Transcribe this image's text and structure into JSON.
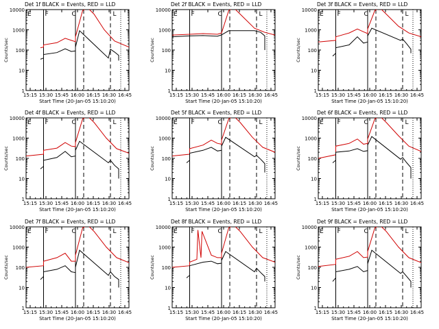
{
  "chart_data": [
    {
      "type": "line",
      "title": "Det 1f BLACK = Events, RED = LLD",
      "xlabel": "Start Time (20-Jan-05 15:10:20)",
      "ylabel": "Counts/sec",
      "yscale": "log",
      "ylim": [
        1,
        10000
      ],
      "y_ticks": [
        "1",
        "10",
        "100",
        "1000",
        "10000"
      ],
      "x_ticks": [
        "15:15",
        "15:30",
        "15:45",
        "16:00",
        "16:15",
        "16:30",
        "16:45"
      ],
      "markers": {
        "E": 0.0,
        "F": 0.17,
        "C": 0.43,
        "L": 0.83
      },
      "solid_lines": [
        0.17,
        0.48
      ],
      "dashed_lines": [
        0.56,
        0.82
      ],
      "dotted_lines": [
        0.92
      ],
      "series": [
        {
          "name": "RED = LLD",
          "color": "#d00000",
          "x": [
            0.14,
            0.17,
            0.17,
            0.3,
            0.38,
            0.44,
            0.48,
            0.48,
            0.55,
            0.6,
            0.66,
            0.76,
            0.86,
            0.96,
            1.0
          ],
          "y": [
            130,
            140,
            180,
            230,
            380,
            300,
            260,
            450,
            9000,
            12000,
            6000,
            1000,
            280,
            170,
            140
          ]
        },
        {
          "name": "BLACK = Events",
          "color": "#000000",
          "x": [
            0.14,
            0.17,
            0.17,
            0.3,
            0.38,
            0.44,
            0.48,
            0.48,
            0.52,
            0.8,
            0.82,
            0.86,
            0.9,
            0.9
          ],
          "y": [
            35,
            40,
            60,
            75,
            115,
            85,
            90,
            140,
            900,
            40,
            110,
            80,
            55,
            30
          ]
        }
      ]
    },
    {
      "type": "line",
      "title": "Det 2f BLACK = Events, RED = LLD",
      "xlabel": "Start Time (20-Jan-05 15:10:20)",
      "ylabel": "Counts/sec",
      "yscale": "log",
      "ylim": [
        1,
        10000
      ],
      "y_ticks": [
        "1",
        "10",
        "100",
        "1000",
        "10000"
      ],
      "x_ticks": [
        "15:15",
        "15:30",
        "15:45",
        "16:00",
        "16:15",
        "16:30",
        "16:45"
      ],
      "markers": {
        "E": 0.0,
        "F": 0.17,
        "C": 0.43,
        "L": 0.83
      },
      "solid_lines": [
        0.17,
        0.48
      ],
      "dashed_lines": [
        0.56,
        0.82
      ],
      "dotted_lines": [
        0.92
      ],
      "series": [
        {
          "name": "RED = LLD",
          "color": "#d00000",
          "x": [
            0.0,
            0.17,
            0.3,
            0.44,
            0.48,
            0.55,
            0.6,
            0.66,
            0.8,
            0.9,
            1.0
          ],
          "y": [
            550,
            600,
            650,
            600,
            700,
            9000,
            12000,
            6000,
            1200,
            750,
            550
          ]
        },
        {
          "name": "BLACK = Events",
          "color": "#000000",
          "x": [
            0.0,
            0.17,
            0.3,
            0.44,
            0.48,
            0.55,
            0.8,
            0.86,
            0.9,
            0.9
          ],
          "y": [
            450,
            500,
            520,
            480,
            560,
            900,
            900,
            750,
            500,
            100
          ]
        }
      ]
    },
    {
      "type": "line",
      "title": "Det 3f BLACK = Events, RED = LLD",
      "xlabel": "Start Time (20-Jan-05 15:10:20)",
      "ylabel": "Counts/sec",
      "yscale": "log",
      "ylim": [
        1,
        10000
      ],
      "y_ticks": [
        "1",
        "10",
        "100",
        "1000",
        "10000"
      ],
      "x_ticks": [
        "15:15",
        "15:30",
        "15:45",
        "16:00",
        "16:15",
        "16:30",
        "16:45"
      ],
      "markers": {
        "E": 0.0,
        "F": 0.17,
        "C": 0.43,
        "L": 0.83
      },
      "solid_lines": [
        0.17,
        0.48
      ],
      "dashed_lines": [
        0.56,
        0.82
      ],
      "dotted_lines": [
        0.92
      ],
      "series": [
        {
          "name": "RED = LLD",
          "color": "#d00000",
          "x": [
            0.0,
            0.17,
            0.17,
            0.3,
            0.38,
            0.44,
            0.48,
            0.48,
            0.55,
            0.6,
            0.66,
            0.78,
            0.88,
            1.0
          ],
          "y": [
            250,
            300,
            450,
            700,
            1100,
            800,
            650,
            1100,
            9000,
            12000,
            6000,
            1500,
            700,
            450
          ]
        },
        {
          "name": "BLACK = Events",
          "color": "#000000",
          "x": [
            0.14,
            0.17,
            0.17,
            0.3,
            0.38,
            0.44,
            0.48,
            0.48,
            0.52,
            0.8,
            0.82,
            0.86,
            0.9,
            0.9
          ],
          "y": [
            50,
            70,
            130,
            180,
            450,
            220,
            250,
            500,
            1200,
            300,
            350,
            200,
            110,
            70
          ]
        }
      ]
    },
    {
      "type": "line",
      "title": "Det 4f BLACK = Events, RED = LLD",
      "xlabel": "Start Time (20-Jan-05 15:10:20)",
      "ylabel": "Counts/sec",
      "yscale": "log",
      "ylim": [
        1,
        10000
      ],
      "y_ticks": [
        "1",
        "10",
        "100",
        "1000",
        "10000"
      ],
      "x_ticks": [
        "15:15",
        "15:30",
        "15:45",
        "16:00",
        "16:15",
        "16:30",
        "16:45"
      ],
      "markers": {
        "E": 0.0,
        "F": 0.17,
        "C": 0.43,
        "L": 0.83
      },
      "solid_lines": [
        0.17,
        0.48
      ],
      "dashed_lines": [
        0.56,
        0.82
      ],
      "dotted_lines": [
        0.92
      ],
      "series": [
        {
          "name": "RED = LLD",
          "color": "#d00000",
          "x": [
            0.0,
            0.17,
            0.17,
            0.3,
            0.38,
            0.44,
            0.48,
            0.48,
            0.55,
            0.6,
            0.66,
            0.78,
            0.88,
            1.0
          ],
          "y": [
            130,
            160,
            250,
            320,
            600,
            400,
            380,
            600,
            9000,
            12000,
            6000,
            1000,
            300,
            180
          ]
        },
        {
          "name": "BLACK = Events",
          "color": "#000000",
          "x": [
            0.14,
            0.17,
            0.17,
            0.3,
            0.38,
            0.44,
            0.48,
            0.48,
            0.52,
            0.8,
            0.82,
            0.86,
            0.9,
            0.9
          ],
          "y": [
            30,
            40,
            80,
            110,
            220,
            120,
            130,
            250,
            700,
            60,
            80,
            45,
            30,
            10
          ]
        }
      ]
    },
    {
      "type": "line",
      "title": "Det 5f BLACK = Events, RED = LLD",
      "xlabel": "Start Time (20-Jan-05 15:10:20)",
      "ylabel": "Counts/sec",
      "yscale": "log",
      "ylim": [
        1,
        10000
      ],
      "y_ticks": [
        "1",
        "10",
        "100",
        "1000",
        "10000"
      ],
      "x_ticks": [
        "15:15",
        "15:30",
        "15:45",
        "16:00",
        "16:15",
        "16:30",
        "16:45"
      ],
      "markers": {
        "E": 0.0,
        "F": 0.17,
        "C": 0.43,
        "L": 0.83
      },
      "solid_lines": [
        0.17,
        0.48
      ],
      "dashed_lines": [
        0.56,
        0.82
      ],
      "dotted_lines": [
        0.92
      ],
      "series": [
        {
          "name": "RED = LLD",
          "color": "#d00000",
          "x": [
            0.0,
            0.17,
            0.17,
            0.3,
            0.38,
            0.44,
            0.48,
            0.48,
            0.55,
            0.6,
            0.66,
            0.78,
            0.88,
            1.0
          ],
          "y": [
            130,
            160,
            300,
            450,
            800,
            550,
            500,
            800,
            9000,
            12000,
            6000,
            1100,
            350,
            200
          ]
        },
        {
          "name": "BLACK = Events",
          "color": "#000000",
          "x": [
            0.14,
            0.17,
            0.17,
            0.3,
            0.38,
            0.44,
            0.48,
            0.48,
            0.52,
            0.8,
            0.82,
            0.86,
            0.9,
            0.9
          ],
          "y": [
            60,
            80,
            180,
            250,
            350,
            230,
            250,
            400,
            1100,
            120,
            140,
            90,
            55,
            20
          ]
        }
      ]
    },
    {
      "type": "line",
      "title": "Det 6f BLACK = Events, RED = LLD",
      "xlabel": "Start Time (20-Jan-05 15:10:20)",
      "ylabel": "Counts/sec",
      "yscale": "log",
      "ylim": [
        1,
        10000
      ],
      "y_ticks": [
        "1",
        "10",
        "100",
        "1000",
        "10000"
      ],
      "x_ticks": [
        "15:15",
        "15:30",
        "15:45",
        "16:00",
        "16:15",
        "16:30",
        "16:45"
      ],
      "markers": {
        "E": 0.0,
        "F": 0.17,
        "C": 0.43,
        "L": 0.83
      },
      "solid_lines": [
        0.17,
        0.48
      ],
      "dashed_lines": [
        0.56,
        0.82
      ],
      "dotted_lines": [
        0.92
      ],
      "series": [
        {
          "name": "RED = LLD",
          "color": "#d00000",
          "x": [
            0.0,
            0.17,
            0.17,
            0.3,
            0.38,
            0.44,
            0.48,
            0.48,
            0.55,
            0.6,
            0.66,
            0.78,
            0.88,
            1.0
          ],
          "y": [
            100,
            150,
            400,
            550,
            900,
            500,
            550,
            900,
            9000,
            12000,
            6000,
            1300,
            400,
            220
          ]
        },
        {
          "name": "BLACK = Events",
          "color": "#000000",
          "x": [
            0.14,
            0.17,
            0.17,
            0.3,
            0.38,
            0.44,
            0.48,
            0.48,
            0.52,
            0.8,
            0.82,
            0.86,
            0.9,
            0.9
          ],
          "y": [
            60,
            80,
            200,
            230,
            300,
            220,
            240,
            450,
            1200,
            90,
            110,
            60,
            35,
            10
          ]
        }
      ]
    },
    {
      "type": "line",
      "title": "Det 7f BLACK = Events, RED = LLD",
      "xlabel": "Start Time (20-Jan-05 15:10:20)",
      "ylabel": "Counts/sec",
      "yscale": "log",
      "ylim": [
        1,
        10000
      ],
      "y_ticks": [
        "1",
        "10",
        "100",
        "1000",
        "10000"
      ],
      "x_ticks": [
        "15:15",
        "15:30",
        "15:45",
        "16:00",
        "16:15",
        "16:30",
        "16:45"
      ],
      "markers": {
        "E": 0.0,
        "F": 0.17,
        "C": 0.43,
        "L": 0.83
      },
      "solid_lines": [
        0.17,
        0.48
      ],
      "dashed_lines": [
        0.56,
        0.82
      ],
      "dotted_lines": [
        0.92
      ],
      "series": [
        {
          "name": "RED = LLD",
          "color": "#d00000",
          "x": [
            0.0,
            0.17,
            0.17,
            0.3,
            0.38,
            0.44,
            0.48,
            0.48,
            0.55,
            0.6,
            0.66,
            0.78,
            0.88,
            1.0
          ],
          "y": [
            100,
            120,
            200,
            300,
            500,
            200,
            200,
            400,
            9000,
            12000,
            6000,
            1000,
            300,
            170
          ]
        },
        {
          "name": "BLACK = Events",
          "color": "#000000",
          "x": [
            0.14,
            0.17,
            0.17,
            0.3,
            0.38,
            0.44,
            0.48,
            0.48,
            0.52,
            0.8,
            0.82,
            0.86,
            0.9,
            0.9
          ],
          "y": [
            25,
            35,
            60,
            80,
            120,
            60,
            55,
            100,
            700,
            40,
            60,
            35,
            25,
            10
          ]
        }
      ]
    },
    {
      "type": "line",
      "title": "Det 8f BLACK = Events, RED = LLD",
      "xlabel": "Start Time (20-Jan-05 15:10:20)",
      "ylabel": "Counts/sec",
      "yscale": "log",
      "ylim": [
        1,
        10000
      ],
      "y_ticks": [
        "1",
        "10",
        "100",
        "1000",
        "10000"
      ],
      "x_ticks": [
        "15:15",
        "15:30",
        "15:45",
        "16:00",
        "16:15",
        "16:30",
        "16:45"
      ],
      "markers": {
        "E": 0.0,
        "F": 0.17,
        "C": 0.43,
        "L": 0.83
      },
      "solid_lines": [
        0.17,
        0.48
      ],
      "dashed_lines": [
        0.56,
        0.82
      ],
      "dotted_lines": [
        0.92
      ],
      "series": [
        {
          "name": "RED = LLD",
          "color": "#d00000",
          "x": [
            0.0,
            0.17,
            0.17,
            0.24,
            0.25,
            0.28,
            0.29,
            0.38,
            0.44,
            0.48,
            0.48,
            0.55,
            0.6,
            0.66,
            0.78,
            0.88,
            1.0
          ],
          "y": [
            100,
            120,
            180,
            250,
            7000,
            300,
            6000,
            400,
            300,
            300,
            500,
            9000,
            12000,
            6000,
            1000,
            300,
            180
          ]
        },
        {
          "name": "BLACK = Events",
          "color": "#000000",
          "x": [
            0.14,
            0.17,
            0.17,
            0.3,
            0.38,
            0.44,
            0.48,
            0.48,
            0.52,
            0.8,
            0.82,
            0.86,
            0.9,
            0.9
          ],
          "y": [
            30,
            40,
            120,
            180,
            200,
            150,
            160,
            220,
            600,
            60,
            90,
            55,
            35,
            20
          ]
        }
      ]
    },
    {
      "type": "line",
      "title": "Det 9f BLACK = Events, RED = LLD",
      "xlabel": "Start Time (20-Jan-05 15:10:20)",
      "ylabel": "Counts/sec",
      "yscale": "log",
      "ylim": [
        1,
        10000
      ],
      "y_ticks": [
        "1",
        "10",
        "100",
        "1000",
        "10000"
      ],
      "x_ticks": [
        "15:15",
        "15:30",
        "15:45",
        "16:00",
        "16:15",
        "16:30",
        "16:45"
      ],
      "markers": {
        "E": 0.0,
        "F": 0.17,
        "C": 0.43,
        "L": 0.83
      },
      "solid_lines": [
        0.17,
        0.48
      ],
      "dashed_lines": [
        0.56,
        0.82
      ],
      "dotted_lines": [
        0.92
      ],
      "series": [
        {
          "name": "RED = LLD",
          "color": "#d00000",
          "x": [
            0.0,
            0.17,
            0.17,
            0.3,
            0.38,
            0.44,
            0.48,
            0.48,
            0.55,
            0.6,
            0.66,
            0.78,
            0.88,
            1.0
          ],
          "y": [
            110,
            140,
            250,
            350,
            600,
            300,
            320,
            600,
            9000,
            12000,
            6000,
            1000,
            300,
            170
          ]
        },
        {
          "name": "BLACK = Events",
          "color": "#000000",
          "x": [
            0.14,
            0.17,
            0.17,
            0.3,
            0.38,
            0.44,
            0.48,
            0.48,
            0.52,
            0.8,
            0.82,
            0.86,
            0.9,
            0.9
          ],
          "y": [
            20,
            30,
            60,
            80,
            110,
            60,
            70,
            150,
            700,
            50,
            60,
            35,
            20,
            10
          ]
        }
      ]
    }
  ]
}
